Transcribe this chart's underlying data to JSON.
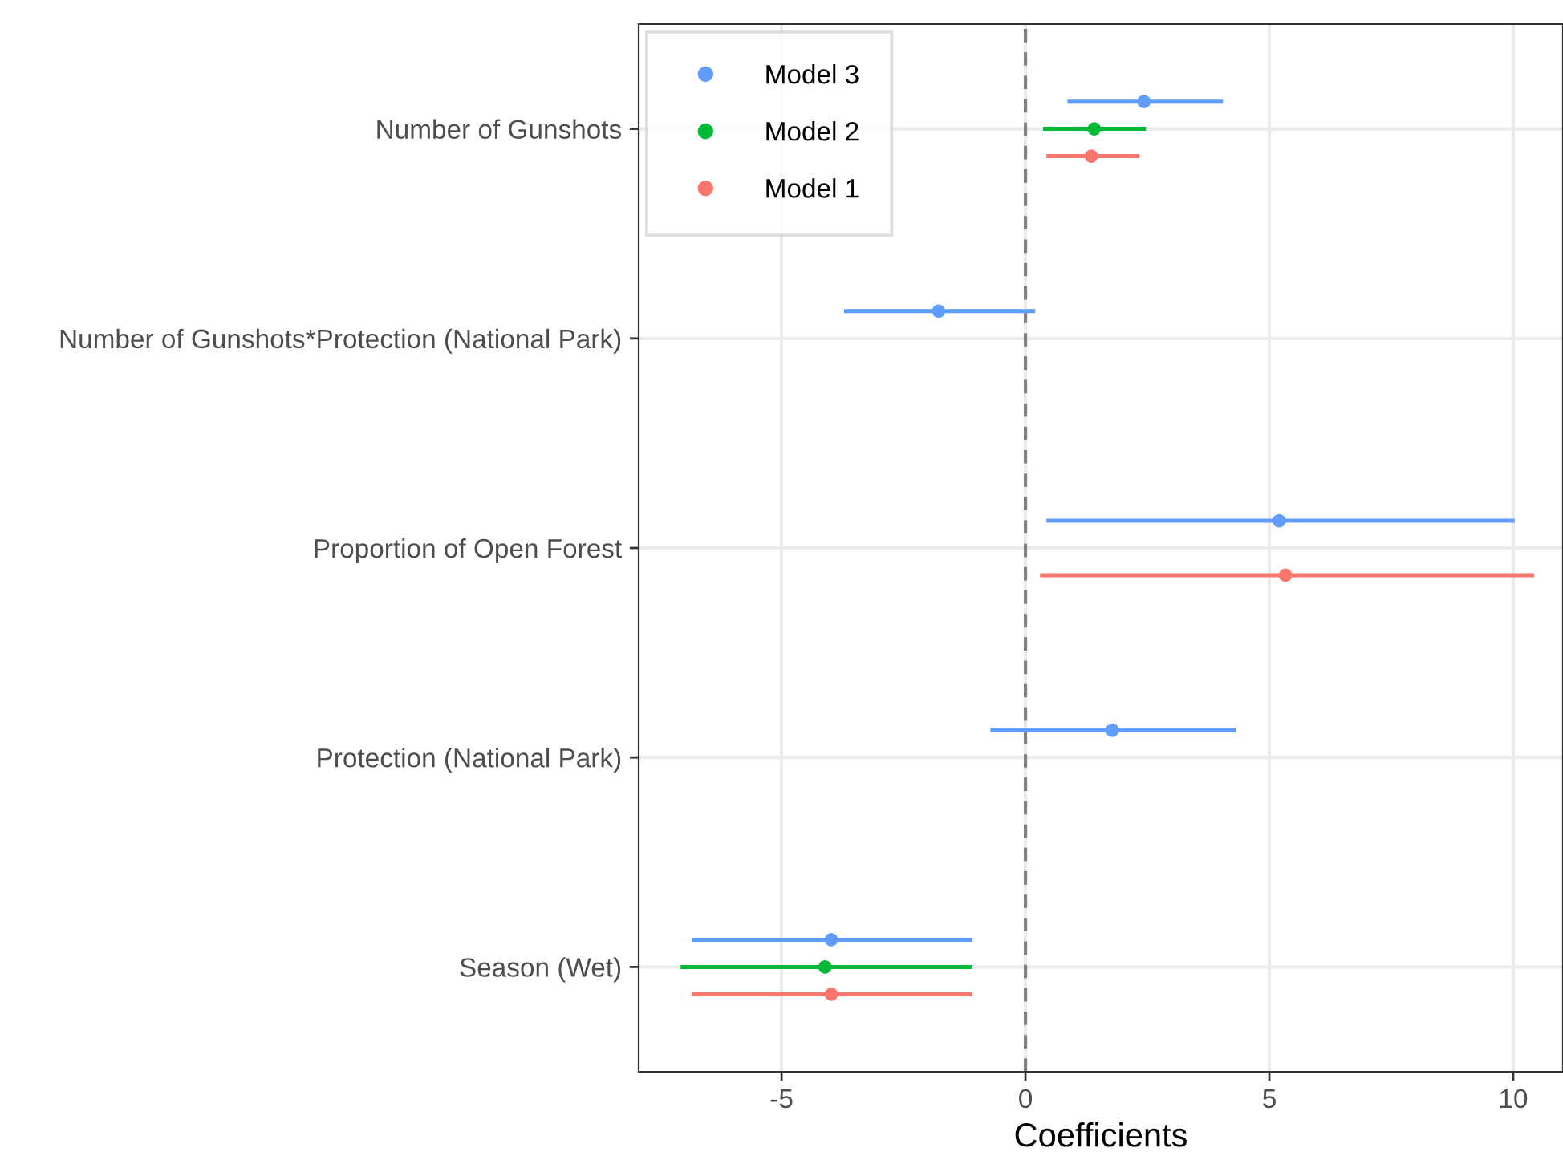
{
  "chart_data": {
    "type": "scatter",
    "orientation": "horizontal",
    "xlabel": "Coefficients",
    "categories": [
      "Number of Gunshots",
      "Number of Gunshots*Protection (National Park)",
      "Proportion of Open Forest",
      "Protection (National Park)",
      "Season (Wet)"
    ],
    "series": [
      {
        "name": "Model 3",
        "color": "#619cff",
        "values": [
          2.43,
          -1.78,
          5.2,
          1.78,
          -3.98
        ],
        "errors": [
          [
            0.86,
            4.05
          ],
          [
            -3.72,
            0.2
          ],
          [
            0.43,
            10.03
          ],
          [
            -0.72,
            4.31
          ],
          [
            -6.84,
            -1.09
          ]
        ]
      },
      {
        "name": "Model 2",
        "color": "#00ba38",
        "values": [
          1.41,
          null,
          null,
          null,
          -4.11
        ],
        "errors": [
          [
            0.36,
            2.47
          ],
          null,
          null,
          null,
          [
            -7.07,
            -1.09
          ]
        ]
      },
      {
        "name": "Model 1",
        "color": "#f8766d",
        "values": [
          1.35,
          null,
          5.33,
          null,
          -3.98
        ],
        "errors": [
          [
            0.43,
            2.34
          ],
          null,
          [
            0.3,
            10.43
          ],
          null,
          [
            -6.84,
            -1.09
          ]
        ]
      }
    ],
    "xlim": [
      -7.93,
      11.02
    ],
    "xticks": [
      -5,
      0,
      5,
      10
    ],
    "ref_lines": [
      {
        "axis": "x",
        "value": 0,
        "color": "#808080",
        "line_style": "dashed"
      }
    ],
    "grid": true,
    "legend": "top left",
    "marker": "circle"
  }
}
